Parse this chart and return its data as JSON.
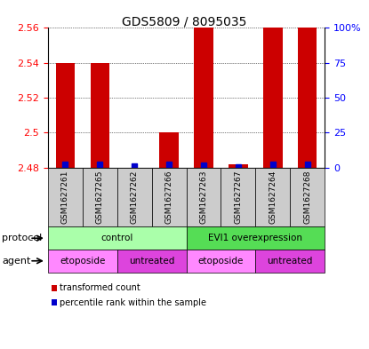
{
  "title": "GDS5809 / 8095035",
  "samples": [
    "GSM1627261",
    "GSM1627265",
    "GSM1627262",
    "GSM1627266",
    "GSM1627263",
    "GSM1627267",
    "GSM1627264",
    "GSM1627268"
  ],
  "transformed_count": [
    2.54,
    2.54,
    2.48,
    2.5,
    2.56,
    2.482,
    2.56,
    2.56
  ],
  "percentile_rank": [
    2.0,
    2.0,
    1.0,
    2.0,
    1.5,
    0.5,
    2.0,
    2.0
  ],
  "ylim_left": [
    2.48,
    2.56
  ],
  "ylim_right": [
    0,
    100
  ],
  "yticks_left": [
    2.48,
    2.5,
    2.52,
    2.54,
    2.56
  ],
  "yticks_right": [
    0,
    25,
    50,
    75,
    100
  ],
  "ytick_labels_right": [
    "0",
    "25",
    "50",
    "75",
    "100%"
  ],
  "bar_color": "#cc0000",
  "blue_color": "#0000cc",
  "bar_base": 2.48,
  "protocol_groups": [
    {
      "label": "control",
      "start": 0,
      "end": 4,
      "color": "#aaffaa"
    },
    {
      "label": "EVI1 overexpression",
      "start": 4,
      "end": 8,
      "color": "#55dd55"
    }
  ],
  "agent_groups": [
    {
      "label": "etoposide",
      "start": 0,
      "end": 2,
      "color": "#ff88ff"
    },
    {
      "label": "untreated",
      "start": 2,
      "end": 4,
      "color": "#dd44dd"
    },
    {
      "label": "etoposide",
      "start": 4,
      "end": 6,
      "color": "#ff88ff"
    },
    {
      "label": "untreated",
      "start": 6,
      "end": 8,
      "color": "#dd44dd"
    }
  ],
  "protocol_label": "protocol",
  "agent_label": "agent",
  "legend_red_label": "transformed count",
  "legend_blue_label": "percentile rank within the sample",
  "bg_color": "#cccccc",
  "plot_bg": "#ffffff"
}
